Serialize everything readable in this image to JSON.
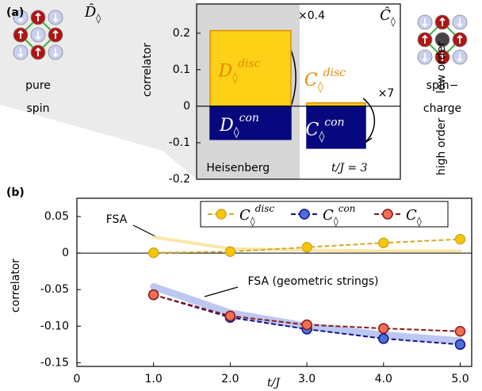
{
  "chart_data": [
    {
      "type": "bar",
      "panel": "(a)",
      "ylabel": "correlator",
      "categories": [
        "Heisenberg",
        "t/J = 3"
      ],
      "ylim": [
        -0.2,
        0.28
      ],
      "yticks": [
        0.2,
        0.1,
        0,
        -0.1,
        -0.2
      ],
      "series": [
        {
          "color": "#fcd116",
          "edge": "#e58a00",
          "values": [
            0.207,
            0.009
          ],
          "labels": [
            [
              "D",
              "◊",
              "disc"
            ],
            [
              "C",
              "◊",
              "disc"
            ]
          ]
        },
        {
          "color": "#08087e",
          "edge": "#08087e",
          "values": [
            -0.091,
            -0.115
          ],
          "labels": [
            [
              "D",
              "◊",
              "con"
            ],
            [
              "C",
              "◊",
              "con"
            ]
          ]
        }
      ],
      "annotations": [
        "×0.4",
        "×7"
      ],
      "order_labels": [
        {
          "text": "low order",
          "color": "#e58a00"
        },
        {
          "text": "high order",
          "color": "#5a6fd0"
        }
      ],
      "icons": [
        {
          "text": "D̂",
          "sub": "◊",
          "caption": [
            "pure",
            "spin"
          ]
        },
        {
          "text": "Ĉ",
          "sub": "◊",
          "caption": [
            "spin−",
            "charge"
          ]
        }
      ]
    },
    {
      "type": "line",
      "panel": "(b)",
      "ylabel": "correlator",
      "xlabel": "t/J",
      "x": [
        1,
        2,
        3,
        4,
        5
      ],
      "xlim": [
        0,
        5.15
      ],
      "xticks": [
        0,
        {
          "value": 1,
          "label": "1.0"
        },
        {
          "value": 2,
          "label": "2.0"
        },
        {
          "value": 3,
          "label": "3.0"
        },
        {
          "value": 4,
          "label": "4.0"
        },
        {
          "value": 5,
          "label": "5.0"
        }
      ],
      "ylim": [
        -0.155,
        0.075
      ],
      "yticks": [
        0.05,
        0,
        -0.05,
        {
          "value": -0.1,
          "label": "-0.10"
        },
        -0.15
      ],
      "series": [
        {
          "name": "C",
          "name_sub": "◊",
          "name_sup": "disc",
          "color": "#d4a82a",
          "marker": "#f6c700",
          "values": [
            0.0005,
            0.002,
            0.008,
            0.014,
            0.019
          ]
        },
        {
          "name": "C",
          "name_sub": "◊",
          "name_sup": "con",
          "color": "#14148a",
          "marker": "#4a6fd8",
          "values": [
            -0.057,
            -0.088,
            -0.104,
            -0.117,
            -0.125
          ]
        },
        {
          "name": "C",
          "name_sub": "◊",
          "color": "#8b1a1a",
          "marker": "#f07050",
          "values": [
            -0.057,
            -0.086,
            -0.098,
            -0.103,
            -0.107
          ]
        }
      ],
      "bands": [
        {
          "label": "FSA",
          "color": "#f5d76e",
          "x": [
            1,
            2,
            3,
            4,
            5
          ],
          "values": [
            0.022,
            0.006,
            0.004,
            0.003,
            0.003
          ]
        },
        {
          "label": "FSA (geometric strings)",
          "color": "#8fa4e8",
          "x": [
            1,
            2,
            3,
            4,
            5
          ],
          "values": [
            -0.046,
            -0.082,
            -0.1,
            -0.112,
            -0.12
          ]
        }
      ]
    }
  ]
}
